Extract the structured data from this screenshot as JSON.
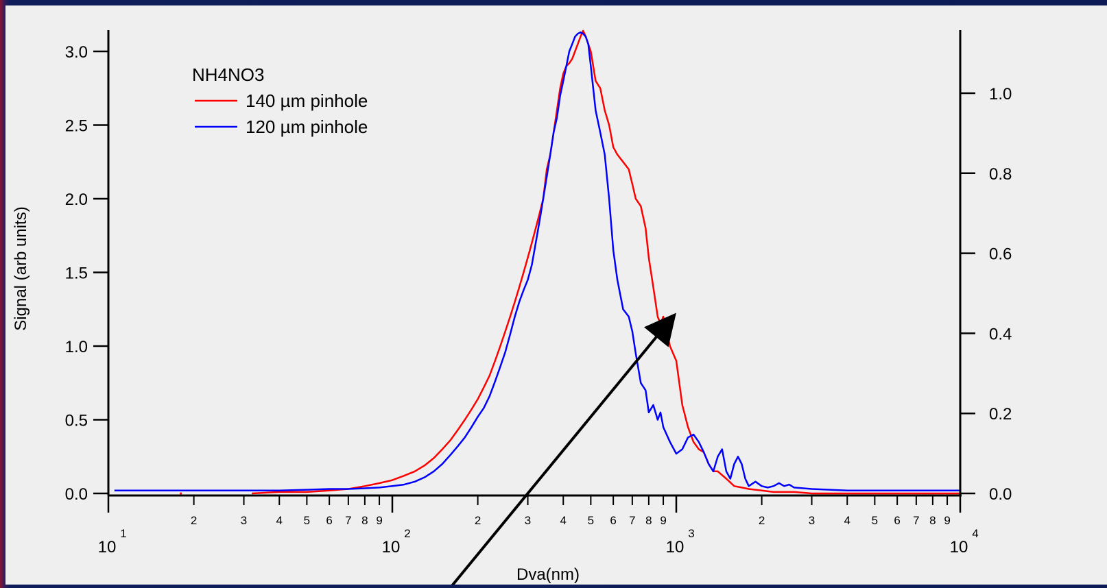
{
  "chart_data": {
    "type": "line",
    "title": "",
    "xlabel": "Dva(nm)",
    "ylabel": "Signal (arb units)",
    "xscale": "log",
    "xlim": [
      10,
      10000
    ],
    "ylim_left": [
      0,
      3.0
    ],
    "ylim_right": [
      0,
      1.1
    ],
    "x_major_ticks": [
      {
        "value": 10,
        "base": "10",
        "exp": "1"
      },
      {
        "value": 100,
        "base": "10",
        "exp": "2"
      },
      {
        "value": 1000,
        "base": "10",
        "exp": "3"
      },
      {
        "value": 10000,
        "base": "10",
        "exp": "4"
      }
    ],
    "x_minor_labels": [
      "2",
      "3",
      "4",
      "5",
      "6",
      "7",
      "8",
      "9"
    ],
    "y_left_ticks": [
      "0.0",
      "0.5",
      "1.0",
      "1.5",
      "2.0",
      "2.5",
      "3.0"
    ],
    "y_right_ticks": [
      "0.0",
      "0.2",
      "0.4",
      "0.6",
      "0.8",
      "1.0"
    ],
    "grid": false,
    "legend": {
      "title": "NH4NO3",
      "position": "top-left",
      "entries": [
        {
          "label": "140 µm pinhole",
          "color": "#ff0000"
        },
        {
          "label": "120 µm pinhole",
          "color": "#0000ff"
        }
      ]
    },
    "series": [
      {
        "name": "140 µm pinhole",
        "color": "#ff0000",
        "axis": "left",
        "x": [
          32,
          40,
          50,
          60,
          70,
          80,
          90,
          100,
          110,
          120,
          130,
          140,
          150,
          160,
          170,
          180,
          190,
          200,
          210,
          220,
          230,
          240,
          250,
          260,
          270,
          280,
          290,
          300,
          310,
          320,
          330,
          340,
          350,
          360,
          370,
          380,
          390,
          400,
          410,
          420,
          430,
          440,
          450,
          460,
          470,
          480,
          490,
          500,
          510,
          520,
          540,
          560,
          580,
          600,
          620,
          650,
          680,
          700,
          720,
          750,
          780,
          800,
          830,
          860,
          880,
          900,
          950,
          1000,
          1050,
          1100,
          1150,
          1200,
          1250,
          1300,
          1350,
          1400,
          1500,
          1600,
          1700,
          1800,
          2000,
          2200,
          2400,
          2600,
          3000,
          4000,
          5000,
          7000,
          10000
        ],
        "y": [
          0.0,
          0.01,
          0.01,
          0.02,
          0.03,
          0.05,
          0.07,
          0.09,
          0.12,
          0.15,
          0.19,
          0.24,
          0.3,
          0.36,
          0.43,
          0.5,
          0.57,
          0.64,
          0.72,
          0.8,
          0.9,
          1.0,
          1.1,
          1.2,
          1.3,
          1.4,
          1.5,
          1.6,
          1.7,
          1.8,
          1.9,
          2.0,
          2.2,
          2.3,
          2.45,
          2.6,
          2.75,
          2.85,
          2.9,
          2.92,
          2.95,
          3.0,
          3.05,
          3.1,
          3.14,
          3.1,
          3.05,
          3.0,
          2.9,
          2.8,
          2.75,
          2.6,
          2.5,
          2.35,
          2.3,
          2.25,
          2.2,
          2.1,
          2.0,
          1.95,
          1.8,
          1.6,
          1.4,
          1.2,
          1.15,
          1.2,
          1.0,
          0.9,
          0.6,
          0.45,
          0.35,
          0.3,
          0.28,
          0.2,
          0.15,
          0.15,
          0.1,
          0.05,
          0.04,
          0.03,
          0.02,
          0.01,
          0.01,
          0.01,
          0.0,
          0.0,
          0.0,
          0.0,
          0.0
        ]
      },
      {
        "name": "120 µm pinhole",
        "color": "#0000ff",
        "axis": "left",
        "x": [
          10.5,
          15,
          20,
          30,
          40,
          50,
          60,
          70,
          80,
          90,
          100,
          110,
          120,
          130,
          140,
          150,
          160,
          170,
          180,
          190,
          200,
          210,
          220,
          230,
          240,
          250,
          260,
          270,
          280,
          290,
          300,
          310,
          320,
          330,
          340,
          350,
          360,
          370,
          380,
          390,
          400,
          410,
          420,
          430,
          440,
          450,
          460,
          470,
          480,
          490,
          500,
          510,
          520,
          540,
          560,
          580,
          600,
          620,
          650,
          680,
          700,
          720,
          750,
          780,
          800,
          830,
          860,
          880,
          900,
          950,
          1000,
          1050,
          1100,
          1150,
          1200,
          1250,
          1300,
          1350,
          1400,
          1450,
          1500,
          1550,
          1600,
          1650,
          1700,
          1750,
          1800,
          1900,
          2000,
          2100,
          2200,
          2300,
          2400,
          2500,
          2600,
          3000,
          4000,
          5000,
          7000,
          10000
        ],
        "y": [
          0.02,
          0.02,
          0.02,
          0.02,
          0.02,
          0.025,
          0.03,
          0.03,
          0.035,
          0.04,
          0.05,
          0.06,
          0.08,
          0.11,
          0.15,
          0.2,
          0.26,
          0.32,
          0.38,
          0.45,
          0.52,
          0.58,
          0.66,
          0.76,
          0.86,
          0.96,
          1.08,
          1.2,
          1.3,
          1.38,
          1.45,
          1.55,
          1.7,
          1.85,
          2.0,
          2.15,
          2.3,
          2.45,
          2.55,
          2.7,
          2.8,
          2.9,
          3.0,
          3.05,
          3.1,
          3.12,
          3.13,
          3.12,
          3.1,
          3.05,
          2.9,
          2.75,
          2.6,
          2.45,
          2.3,
          2.0,
          1.65,
          1.45,
          1.25,
          1.2,
          1.1,
          0.95,
          0.75,
          0.7,
          0.55,
          0.6,
          0.5,
          0.55,
          0.45,
          0.35,
          0.27,
          0.3,
          0.38,
          0.4,
          0.35,
          0.28,
          0.2,
          0.15,
          0.25,
          0.3,
          0.15,
          0.1,
          0.2,
          0.25,
          0.2,
          0.1,
          0.05,
          0.08,
          0.05,
          0.04,
          0.05,
          0.07,
          0.05,
          0.06,
          0.04,
          0.03,
          0.02,
          0.02,
          0.02,
          0.02
        ]
      }
    ]
  }
}
